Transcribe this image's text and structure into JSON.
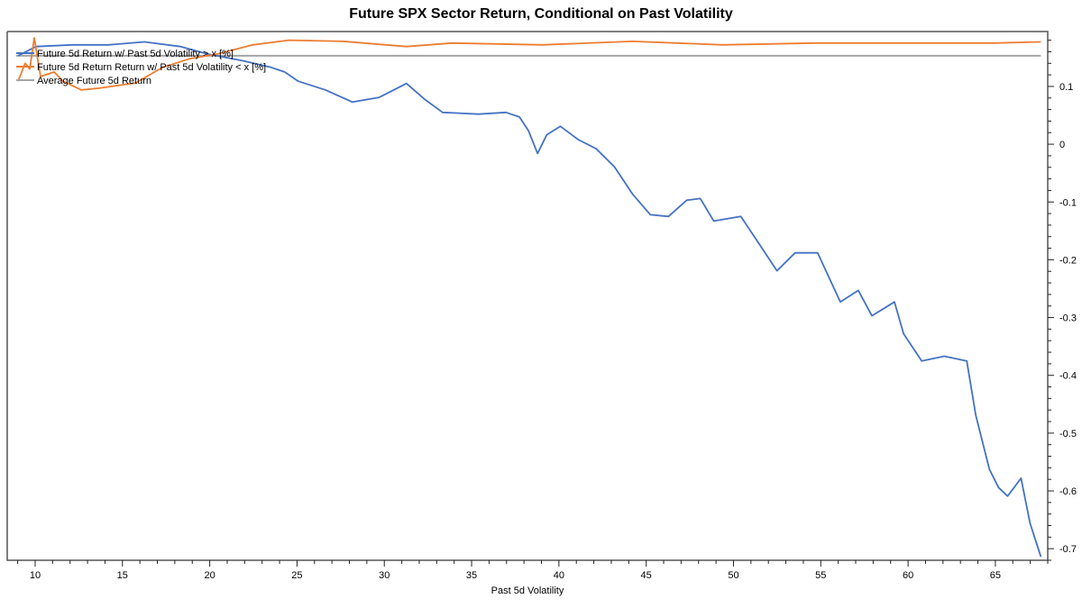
{
  "chart_data": {
    "type": "line",
    "title": "Future SPX Sector Return, Conditional on Past Volatility",
    "xlabel": "Past 5d Volatility",
    "ylabel": "",
    "xlim": [
      8.4,
      68.0
    ],
    "ylim": [
      -0.72,
      0.195
    ],
    "x_ticks": [
      10,
      15,
      20,
      25,
      30,
      35,
      40,
      45,
      50,
      55,
      60,
      65
    ],
    "y_ticks": [
      0.1,
      0,
      -0.1,
      -0.2,
      -0.3,
      -0.4,
      -0.5,
      -0.6,
      -0.7
    ],
    "y_tick_labels": [
      "0.1",
      "0",
      "-0.1",
      "-0.2",
      "-0.3",
      "-0.4",
      "-0.5",
      "-0.6",
      "-0.7"
    ],
    "y_axis_side": "right",
    "grid": false,
    "legend_position": "top-left",
    "series": [
      {
        "name": "Future 5d Return w/ Past 5d Volatility > x [%]",
        "color": "#4472c4",
        "x": [
          9.02,
          10.05,
          12.12,
          14.19,
          16.26,
          18.33,
          19.89,
          21.96,
          23.51,
          24.29,
          25.07,
          26.62,
          28.17,
          29.71,
          31.27,
          32.3,
          33.34,
          35.41,
          36.97,
          37.74,
          38.26,
          38.78,
          39.3,
          40.08,
          41.11,
          42.14,
          43.18,
          44.21,
          45.24,
          46.28,
          47.32,
          48.1,
          48.87,
          50.42,
          51.46,
          52.49,
          53.53,
          54.82,
          56.12,
          57.15,
          57.93,
          59.22,
          59.74,
          60.78,
          62.07,
          63.36,
          63.88,
          64.66,
          65.18,
          65.7,
          66.47,
          66.99,
          67.61
        ],
        "y": [
          0.153,
          0.169,
          0.172,
          0.172,
          0.177,
          0.169,
          0.156,
          0.144,
          0.133,
          0.125,
          0.109,
          0.094,
          0.073,
          0.081,
          0.105,
          0.078,
          0.055,
          0.052,
          0.055,
          0.047,
          0.023,
          -0.016,
          0.016,
          0.031,
          0.008,
          -0.008,
          -0.039,
          -0.086,
          -0.122,
          -0.125,
          -0.097,
          -0.094,
          -0.133,
          -0.125,
          -0.172,
          -0.219,
          -0.188,
          -0.188,
          -0.273,
          -0.253,
          -0.297,
          -0.273,
          -0.328,
          -0.375,
          -0.367,
          -0.375,
          -0.469,
          -0.5625,
          -0.594,
          -0.609,
          -0.578,
          -0.656,
          -0.714
        ]
      },
      {
        "name": "Future 5d Return Return w/ Past 5d Volatility < x [%]",
        "color": "#ed7d31",
        "x": [
          9.02,
          9.43,
          9.69,
          9.95,
          10.31,
          11.09,
          11.6,
          12.64,
          13.67,
          15.75,
          17.3,
          18.85,
          20.4,
          22.47,
          24.54,
          27.65,
          31.27,
          33.86,
          39.04,
          44.21,
          49.39,
          54.57,
          59.74,
          64.92,
          67.61
        ],
        "y": [
          0.109,
          0.14,
          0.13,
          0.184,
          0.117,
          0.125,
          0.109,
          0.094,
          0.097,
          0.106,
          0.133,
          0.148,
          0.156,
          0.172,
          0.18,
          0.178,
          0.169,
          0.175,
          0.172,
          0.178,
          0.172,
          0.175,
          0.175,
          0.175,
          0.177
        ]
      },
      {
        "name": "Average Future 5d Return",
        "color": "#a5a5a5",
        "x": [
          8.9,
          67.6
        ],
        "y": [
          0.153,
          0.153
        ]
      }
    ]
  }
}
